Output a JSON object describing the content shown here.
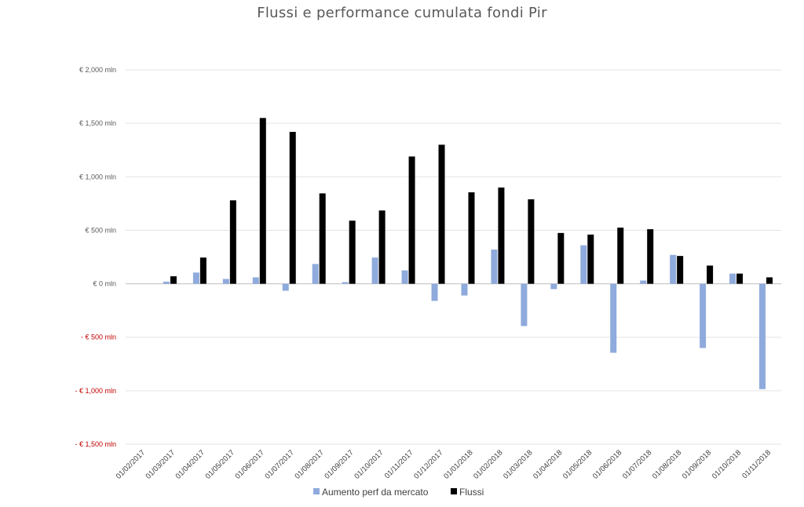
{
  "chart_data": {
    "type": "bar",
    "title": "Flussi  e performance cumulata fondi Pir",
    "xlabel": "",
    "ylabel": "",
    "ylim": [
      -1500,
      2000
    ],
    "yticks": [
      {
        "value": 2000,
        "label": "€ 2,000 mln"
      },
      {
        "value": 1500,
        "label": "€ 1,500 mln"
      },
      {
        "value": 1000,
        "label": "€ 1,000 mln"
      },
      {
        "value": 500,
        "label": "€ 500 mln"
      },
      {
        "value": 0,
        "label": "€ 0 mln"
      },
      {
        "value": -500,
        "label": "- € 500 mln"
      },
      {
        "value": -1000,
        "label": "- € 1,000 mln"
      },
      {
        "value": -1500,
        "label": "- € 1,500 mln"
      }
    ],
    "grid": true,
    "legend_position": "bottom",
    "categories": [
      "01/02/2017",
      "01/03/2017",
      "01/04/2017",
      "01/05/2017",
      "01/06/2017",
      "01/07/2017",
      "01/08/2017",
      "01/09/2017",
      "01/10/2017",
      "01/11/2017",
      "01/12/2017",
      "01/01/2018",
      "01/02/2018",
      "01/03/2018",
      "01/04/2018",
      "01/05/2018",
      "01/06/2018",
      "01/07/2018",
      "01/08/2018",
      "01/09/2018",
      "01/10/2018",
      "01/11/2018"
    ],
    "series": [
      {
        "name": "Aumento perf da mercato",
        "color": "#8faadc",
        "values": [
          0,
          20,
          105,
          45,
          60,
          -65,
          185,
          15,
          245,
          125,
          -160,
          -110,
          320,
          -395,
          -50,
          360,
          -645,
          30,
          270,
          -600,
          95,
          -985
        ]
      },
      {
        "name": "Flussi",
        "color": "#000000",
        "values": [
          0,
          70,
          245,
          780,
          1550,
          1420,
          845,
          590,
          685,
          1190,
          1300,
          855,
          900,
          790,
          475,
          460,
          525,
          510,
          260,
          170,
          95,
          60
        ]
      }
    ]
  }
}
